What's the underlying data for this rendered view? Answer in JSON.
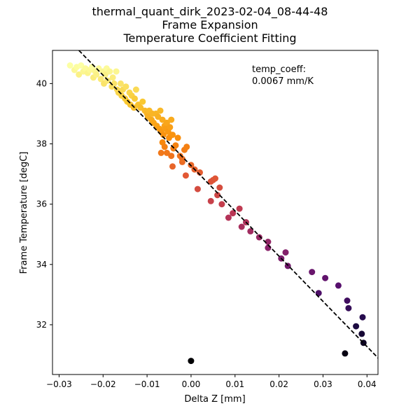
{
  "chart_data": {
    "type": "scatter",
    "title_lines": [
      "thermal_quant_dirk_2023-02-04_08-44-48",
      "Frame Expansion",
      "Temperature Coefficient Fitting"
    ],
    "xlabel": "Delta Z [mm]",
    "ylabel": "Frame Temperature [degC]",
    "xlim": [
      -0.0315,
      0.0425
    ],
    "ylim": [
      30.35,
      41.1
    ],
    "xticks": [
      -0.03,
      -0.02,
      -0.01,
      0.0,
      0.01,
      0.02,
      0.03,
      0.04
    ],
    "xtick_labels": [
      "−0.03",
      "−0.02",
      "−0.01",
      "0.00",
      "0.01",
      "0.02",
      "0.03",
      "0.04"
    ],
    "yticks": [
      32,
      34,
      36,
      38,
      40
    ],
    "ytick_labels": [
      "32",
      "34",
      "36",
      "38",
      "40"
    ],
    "grid": false,
    "colormap": "inferno",
    "color_range": [
      30.8,
      40.6
    ],
    "annotation": [
      "temp_coeff:",
      "0.0067 mm/K"
    ],
    "fit_line": {
      "style": "dashed",
      "color": "#000000",
      "points": [
        [
          -0.0255,
          41.1
        ],
        [
          0.0425,
          30.9
        ]
      ]
    },
    "points": [
      [
        -0.0275,
        40.6
      ],
      [
        -0.0265,
        40.45
      ],
      [
        -0.026,
        40.55
      ],
      [
        -0.0255,
        40.3
      ],
      [
        -0.025,
        40.6
      ],
      [
        -0.0245,
        40.4
      ],
      [
        -0.024,
        40.5
      ],
      [
        -0.0235,
        40.35
      ],
      [
        -0.023,
        40.45
      ],
      [
        -0.0225,
        40.55
      ],
      [
        -0.0222,
        40.2
      ],
      [
        -0.0218,
        40.4
      ],
      [
        -0.0215,
        40.3
      ],
      [
        -0.021,
        40.5
      ],
      [
        -0.0205,
        40.15
      ],
      [
        -0.02,
        40.4
      ],
      [
        -0.0198,
        40.0
      ],
      [
        -0.0195,
        40.3
      ],
      [
        -0.0192,
        40.5
      ],
      [
        -0.019,
        40.1
      ],
      [
        -0.0185,
        40.4
      ],
      [
        -0.018,
        39.9
      ],
      [
        -0.0178,
        40.2
      ],
      [
        -0.0175,
        40.0
      ],
      [
        -0.017,
        40.4
      ],
      [
        -0.0168,
        39.8
      ],
      [
        -0.0165,
        39.7
      ],
      [
        -0.016,
        40.0
      ],
      [
        -0.0158,
        39.6
      ],
      [
        -0.0155,
        39.8
      ],
      [
        -0.015,
        39.5
      ],
      [
        -0.0148,
        39.9
      ],
      [
        -0.0145,
        39.4
      ],
      [
        -0.014,
        39.7
      ],
      [
        -0.0138,
        39.3
      ],
      [
        -0.0135,
        39.6
      ],
      [
        -0.013,
        39.2
      ],
      [
        -0.0128,
        39.5
      ],
      [
        -0.0125,
        39.8
      ],
      [
        -0.012,
        39.3
      ],
      [
        -0.0115,
        39.2
      ],
      [
        -0.011,
        39.4
      ],
      [
        -0.0105,
        39.1
      ],
      [
        -0.01,
        39.0
      ],
      [
        -0.0098,
        38.9
      ],
      [
        -0.0095,
        39.1
      ],
      [
        -0.009,
        38.8
      ],
      [
        -0.0088,
        39.0
      ],
      [
        -0.0085,
        38.7
      ],
      [
        -0.008,
        39.0
      ],
      [
        -0.0078,
        38.6
      ],
      [
        -0.0075,
        38.9
      ],
      [
        -0.0072,
        38.5
      ],
      [
        -0.007,
        39.1
      ],
      [
        -0.0068,
        38.4
      ],
      [
        -0.0065,
        38.8
      ],
      [
        -0.0063,
        38.3
      ],
      [
        -0.006,
        38.6
      ],
      [
        -0.0058,
        38.5
      ],
      [
        -0.0055,
        38.7
      ],
      [
        -0.0052,
        38.4
      ],
      [
        -0.005,
        38.2
      ],
      [
        -0.0048,
        38.55
      ],
      [
        -0.0045,
        38.8
      ],
      [
        -0.0042,
        38.3
      ],
      [
        -0.0065,
        38.05
      ],
      [
        -0.006,
        37.9
      ],
      [
        -0.0055,
        37.7
      ],
      [
        -0.0045,
        37.6
      ],
      [
        -0.004,
        37.85
      ],
      [
        -0.0035,
        37.95
      ],
      [
        -0.003,
        38.2
      ],
      [
        -0.0025,
        37.6
      ],
      [
        -0.002,
        37.4
      ],
      [
        -0.0015,
        37.8
      ],
      [
        -0.0068,
        37.7
      ],
      [
        -0.0042,
        37.25
      ],
      [
        -0.002,
        37.5
      ],
      [
        -0.0012,
        36.95
      ],
      [
        -0.001,
        37.9
      ],
      [
        0.0,
        37.3
      ],
      [
        0.0008,
        37.15
      ],
      [
        0.002,
        37.05
      ],
      [
        0.0015,
        36.5
      ],
      [
        0.0045,
        36.75
      ],
      [
        0.005,
        36.8
      ],
      [
        0.0055,
        36.85
      ],
      [
        0.006,
        36.3
      ],
      [
        0.0065,
        36.55
      ],
      [
        0.0045,
        36.1
      ],
      [
        0.007,
        36.0
      ],
      [
        0.0085,
        35.55
      ],
      [
        0.0095,
        35.7
      ],
      [
        0.011,
        35.85
      ],
      [
        0.0115,
        35.25
      ],
      [
        0.0125,
        35.4
      ],
      [
        0.0135,
        35.1
      ],
      [
        0.0155,
        34.9
      ],
      [
        0.0175,
        34.75
      ],
      [
        0.0175,
        34.55
      ],
      [
        0.0205,
        34.2
      ],
      [
        0.0215,
        34.4
      ],
      [
        0.022,
        33.95
      ],
      [
        0.0275,
        33.75
      ],
      [
        0.029,
        33.05
      ],
      [
        0.0305,
        33.55
      ],
      [
        0.0335,
        33.3
      ],
      [
        0.0355,
        32.8
      ],
      [
        0.0358,
        32.55
      ],
      [
        0.0375,
        31.95
      ],
      [
        0.039,
        32.25
      ],
      [
        0.0388,
        31.7
      ],
      [
        0.0392,
        31.4
      ],
      [
        0.035,
        31.05
      ],
      [
        0.0,
        30.8
      ]
    ]
  }
}
